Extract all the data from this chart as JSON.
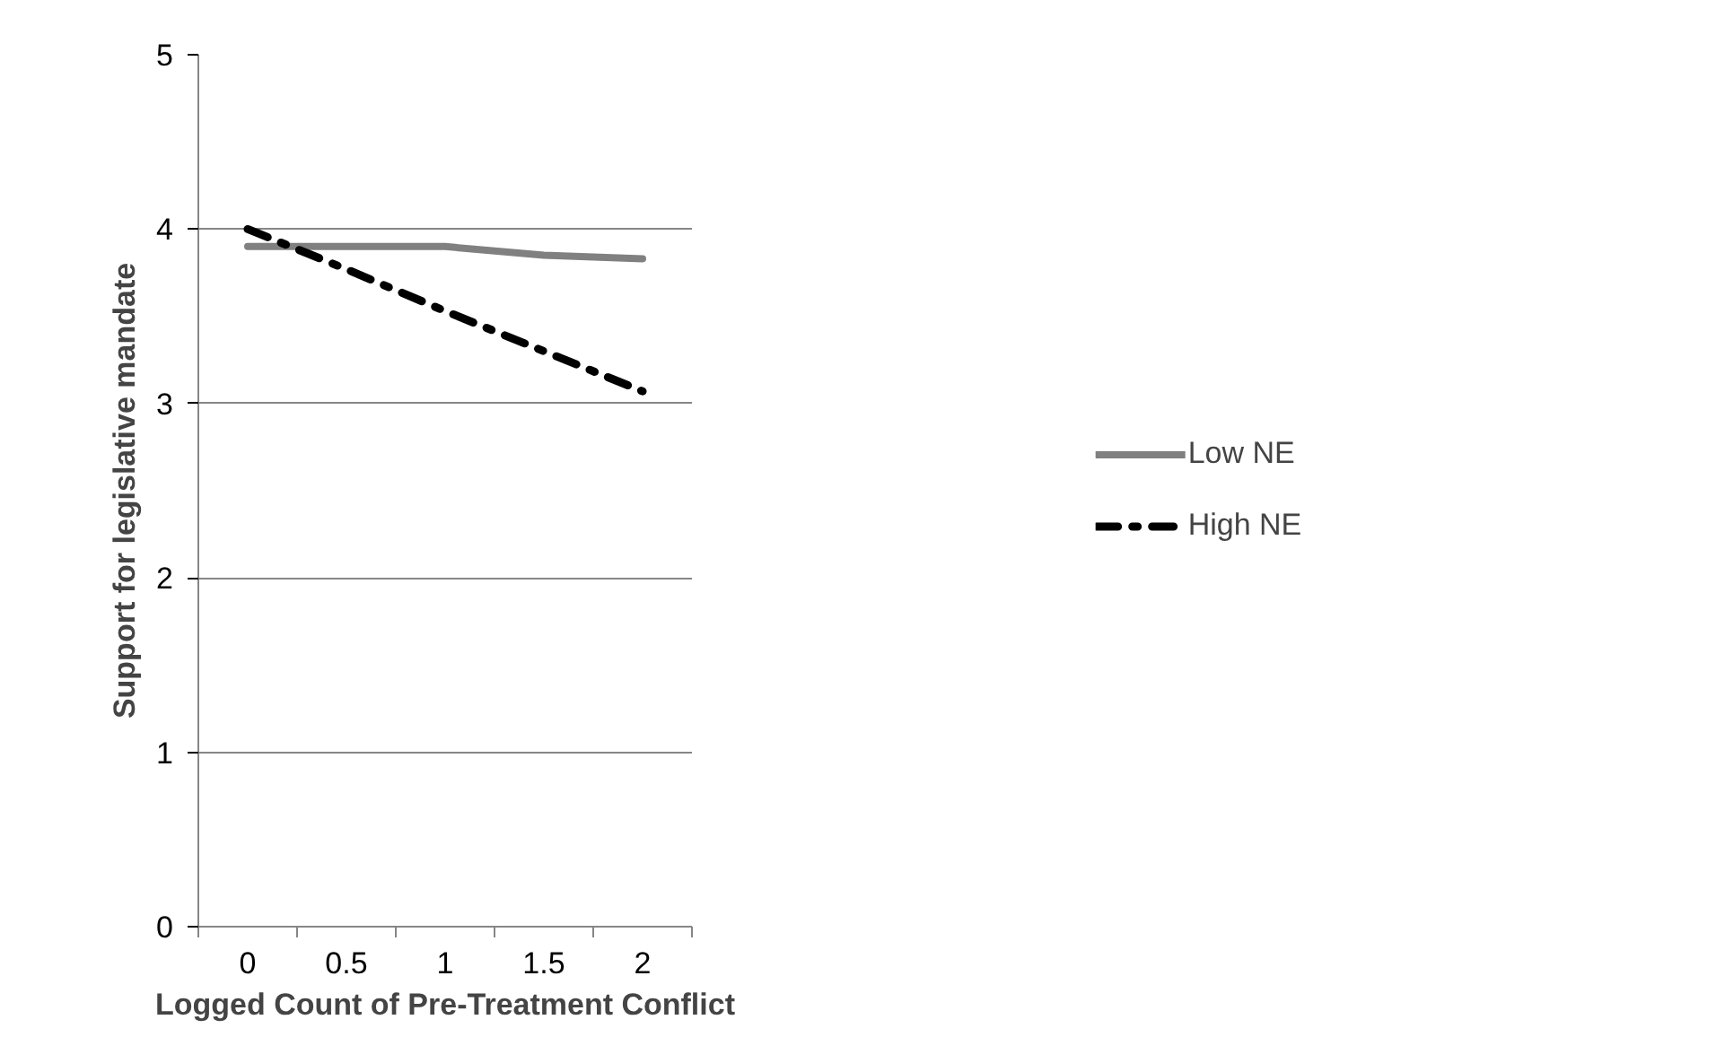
{
  "chart_data": {
    "type": "line",
    "xlabel": "Logged Count of Pre-Treatment Conflict",
    "ylabel": "Support for legislative mandate",
    "categories": [
      "0",
      "0.5",
      "1",
      "1.5",
      "2"
    ],
    "series": [
      {
        "name": "Low NE",
        "color": "#808080",
        "values": [
          3.9,
          3.9,
          3.9,
          3.85,
          3.83
        ],
        "line_style": "solid"
      },
      {
        "name": "High NE",
        "color": "#000000",
        "values": [
          4.0,
          3.77,
          3.53,
          3.3,
          3.07
        ],
        "line_style": "dashdot"
      }
    ],
    "ylim": [
      0,
      5
    ],
    "yticks": [
      0,
      1,
      2,
      3,
      4,
      5
    ],
    "grid": "y",
    "legend": "right",
    "marker": "none"
  }
}
